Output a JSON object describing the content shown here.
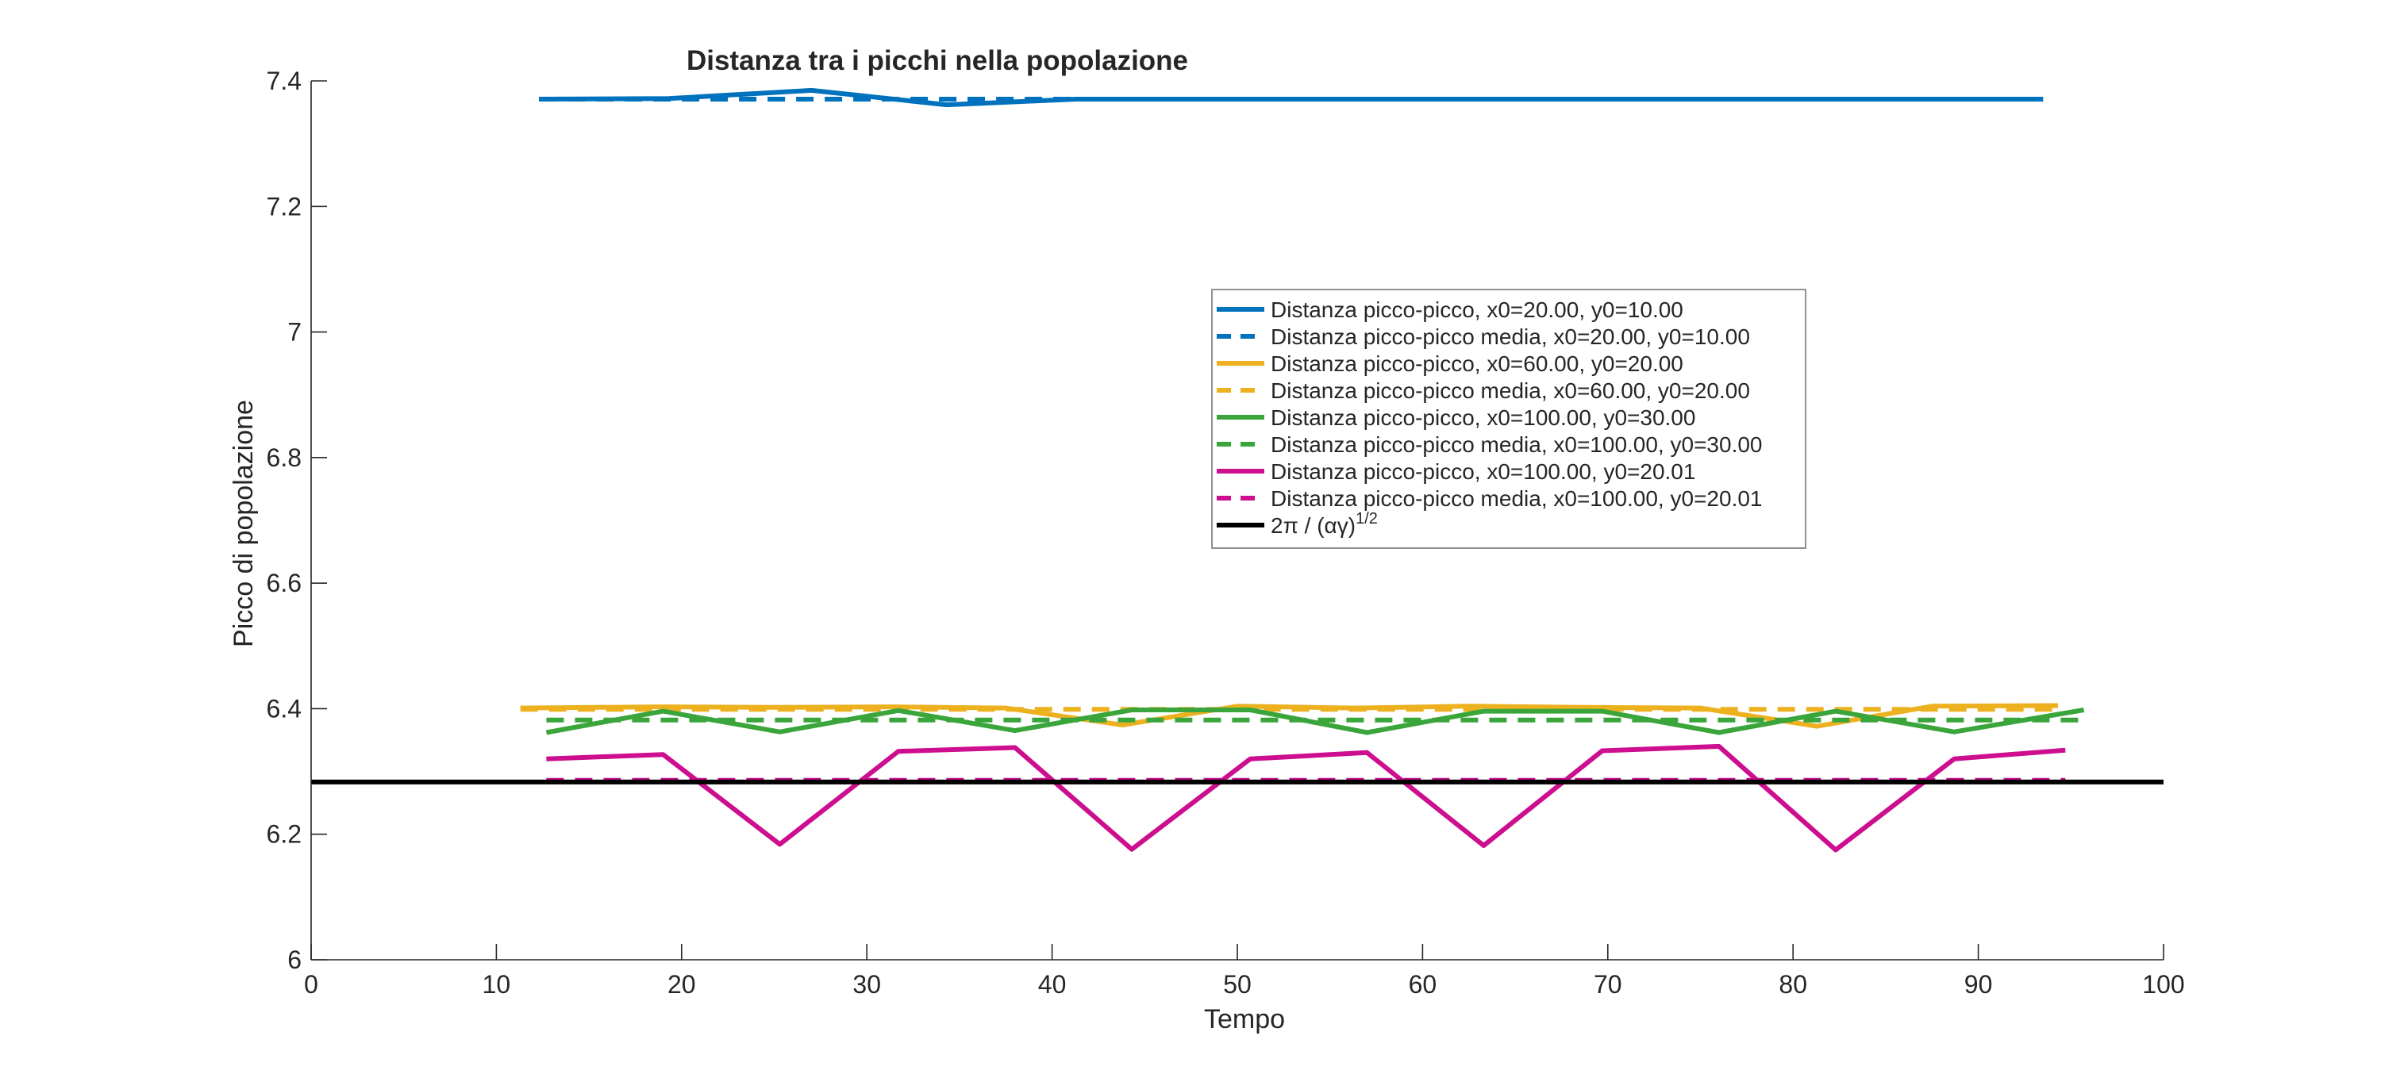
{
  "chart_data": {
    "type": "line",
    "title": "Distanza tra i picchi nella popolazione",
    "xlabel": "Tempo",
    "ylabel": "Picco di popolazione",
    "xlim": [
      0,
      100
    ],
    "ylim": [
      6,
      7.4
    ],
    "xticks": [
      "0",
      "10",
      "20",
      "30",
      "40",
      "50",
      "60",
      "70",
      "80",
      "90",
      "100"
    ],
    "yticks": [
      "6",
      "6.2",
      "6.4",
      "6.6",
      "6.8",
      "7",
      "7.2",
      "7.4"
    ],
    "grid": false,
    "legend_position": "center-right",
    "series": [
      {
        "name": "Distanza picco-picco, x0=20.00, y0=10.00",
        "color": "#0072BD",
        "dash": "solid",
        "x": [
          12.3,
          19.3,
          27.0,
          34.3,
          41.3,
          48.3,
          55.3,
          62.3,
          69.3,
          76.3,
          83.3,
          90.3,
          93.5
        ],
        "y": [
          7.371,
          7.372,
          7.385,
          7.362,
          7.371,
          7.371,
          7.371,
          7.371,
          7.371,
          7.371,
          7.371,
          7.371,
          7.371
        ]
      },
      {
        "name": "Distanza picco-picco media, x0=20.00, y0=10.00",
        "color": "#0072BD",
        "dash": "dashed",
        "x": [
          12.3,
          93.5
        ],
        "y": [
          7.371,
          7.371
        ]
      },
      {
        "name": "Distanza picco-picco, x0=60.00, y0=20.00",
        "color": "#EDB120",
        "dash": "solid",
        "x": [
          11.3,
          18.8,
          25.0,
          31.3,
          37.5,
          43.8,
          50.0,
          56.3,
          62.5,
          68.8,
          75.0,
          81.3,
          87.5,
          94.3
        ],
        "y": [
          6.401,
          6.403,
          6.402,
          6.403,
          6.401,
          6.374,
          6.404,
          6.401,
          6.404,
          6.402,
          6.401,
          6.372,
          6.404,
          6.405
        ]
      },
      {
        "name": "Distanza picco-picco media, x0=60.00, y0=20.00",
        "color": "#EDB120",
        "dash": "dashed",
        "x": [
          11.3,
          94.3
        ],
        "y": [
          6.399,
          6.399
        ]
      },
      {
        "name": "Distanza picco-picco, x0=100.00, y0=30.00",
        "color": "#3AA53A",
        "dash": "solid",
        "x": [
          12.7,
          19.0,
          25.3,
          31.7,
          38.0,
          44.3,
          50.7,
          57.0,
          63.3,
          69.7,
          76.0,
          82.3,
          88.7,
          95.7
        ],
        "y": [
          6.362,
          6.396,
          6.363,
          6.397,
          6.365,
          6.398,
          6.398,
          6.362,
          6.396,
          6.396,
          6.362,
          6.396,
          6.363,
          6.398
        ]
      },
      {
        "name": "Distanza picco-picco media, x0=100.00, y0=30.00",
        "color": "#3AA53A",
        "dash": "dashed",
        "x": [
          12.7,
          95.7
        ],
        "y": [
          6.382,
          6.382
        ]
      },
      {
        "name": "Distanza picco-picco, x0=100.00, y0=20.01",
        "color": "#CC0E8F",
        "dash": "solid",
        "x": [
          12.7,
          19.0,
          25.3,
          31.7,
          38.0,
          44.3,
          50.7,
          57.0,
          63.3,
          69.7,
          76.0,
          82.3,
          88.7,
          94.7
        ],
        "y": [
          6.32,
          6.327,
          6.184,
          6.332,
          6.338,
          6.176,
          6.32,
          6.33,
          6.182,
          6.333,
          6.34,
          6.175,
          6.32,
          6.334
        ]
      },
      {
        "name": "Distanza picco-picco media, x0=100.00, y0=20.01",
        "color": "#CC0E8F",
        "dash": "dashed",
        "x": [
          12.7,
          94.7
        ],
        "y": [
          6.286,
          6.286
        ]
      },
      {
        "name": "2π  /  (αγ)^1/2",
        "color": "#000000",
        "dash": "solid",
        "x": [
          0,
          100
        ],
        "y": [
          6.2832,
          6.2832
        ]
      }
    ],
    "legend_entries": [
      "Distanza picco-picco, x0=20.00, y0=10.00",
      "Distanza picco-picco media, x0=20.00, y0=10.00",
      "Distanza picco-picco, x0=60.00, y0=20.00",
      "Distanza picco-picco media, x0=60.00, y0=20.00",
      "Distanza picco-picco, x0=100.00, y0=30.00",
      "Distanza picco-picco media, x0=100.00, y0=30.00",
      "Distanza picco-picco, x0=100.00, y0=20.01",
      "Distanza picco-picco media, x0=100.00, y0=20.01",
      "2π  /  (αγ)"
    ],
    "legend_last_superscript": "1/2"
  }
}
